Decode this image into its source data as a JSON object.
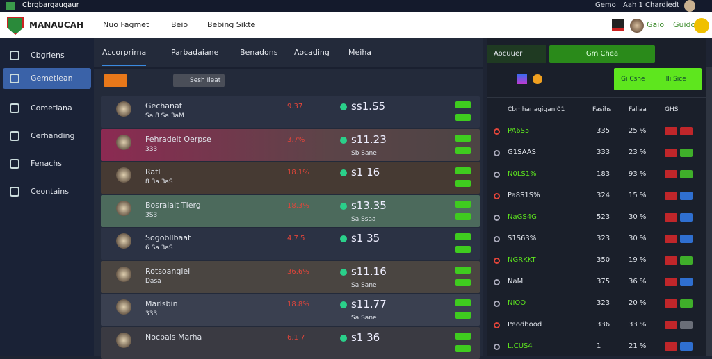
{
  "topbar": {
    "title": "Cbrgbargaugaur",
    "items": [
      "Gemo",
      "Aah 1 Chardiedt"
    ]
  },
  "header": {
    "logo": "MANAUCAH",
    "links": [
      "Nuo Fagmet",
      "Beio",
      "Bebing Sikte"
    ],
    "user": "Gaio",
    "balance": "Guido"
  },
  "sidebar": {
    "items": [
      "Cbgriens",
      "Gemetlean",
      "Cometiana",
      "Cerhanding",
      "Fenachs",
      "Ceontains"
    ],
    "active": 1
  },
  "tabs": {
    "items": [
      "Accorprirna",
      "Parbadaiane",
      "Benadons",
      "Aocading",
      "Meiha"
    ],
    "active": 0
  },
  "filter": {
    "button": "Sesh Ileat"
  },
  "matches": [
    {
      "name": "Gechanat",
      "sub": "Sa 8 Sa 3aM",
      "pct": "9.37",
      "odds": "ss1.S5",
      "bg": "#2b3244"
    },
    {
      "name": "Fehradelt Oerpse",
      "sub": "333",
      "pct": "3.7%",
      "odds": "s11.23",
      "note": "Sb Sane",
      "bg": "linear-gradient(90deg,#8c2a52,#5c4448 60%,#4c4444)"
    },
    {
      "name": "Ratl",
      "sub": "8 3a 3aS",
      "pct": "18.1%",
      "odds": "s1 16",
      "bg": "#463a33"
    },
    {
      "name": "Bosralalt Tlerg",
      "sub": "3S3",
      "pct": "18.3%",
      "odds": "s13.35",
      "note": "Sa Ssaa",
      "bg": "#4c6a5c"
    },
    {
      "name": "Sogobllbaat",
      "sub": "6 Sa 3aS",
      "pct": "4.7 5",
      "odds": "s1 35",
      "bg": "#2b3244"
    },
    {
      "name": "Rotsoanqlel",
      "sub": "Dasa",
      "pct": "36.6%",
      "odds": "s11.16",
      "note": "Sa Sane",
      "bg": "#4a4541"
    },
    {
      "name": "Marlsbin",
      "sub": "333",
      "pct": "18.8%",
      "odds": "s11.77",
      "note": "Sa Sane",
      "bg": "#3a4050"
    },
    {
      "name": "Nocbals Marha",
      "sub": "",
      "pct": "6.1 7",
      "odds": "s1 36",
      "bg": "#3a3a42"
    }
  ],
  "panel": {
    "title": "Aocuuer",
    "button": "Gm Chea",
    "action": "Gi Cshe",
    "action2": "Ili Sice",
    "columns": [
      "Cbmhanagiganl01",
      "Fasihs",
      "Faliaa",
      "GHS"
    ]
  },
  "rows": [
    {
      "name": "PA6S5",
      "a": "335",
      "b": "25 %",
      "c": [
        "#c0262a",
        "#c0262a"
      ]
    },
    {
      "name": "G1SAAS",
      "a": "333",
      "b": "23 %",
      "c": [
        "#c0262a",
        "#3fae2a"
      ]
    },
    {
      "name": "N0LS1%",
      "a": "183",
      "b": "93 %",
      "c": [
        "#c0262a",
        "#3fae2a"
      ]
    },
    {
      "name": "Pa8S1S%",
      "a": "324",
      "b": "15 %",
      "c": [
        "#c0262a",
        "#2f6fd0"
      ]
    },
    {
      "name": "NaGS4G",
      "a": "523",
      "b": "30 %",
      "c": [
        "#c0262a",
        "#2f6fd0"
      ]
    },
    {
      "name": "S1S63%",
      "a": "323",
      "b": "30 %",
      "c": [
        "#c0262a",
        "#2f6fd0"
      ]
    },
    {
      "name": "NGRKKT",
      "a": "350",
      "b": "19 %",
      "c": [
        "#c0262a",
        "#3fae2a"
      ]
    },
    {
      "name": "NaM",
      "a": "375",
      "b": "36 %",
      "c": [
        "#c0262a",
        "#2f6fd0"
      ]
    },
    {
      "name": "NIOO",
      "a": "323",
      "b": "20 %",
      "c": [
        "#c0262a",
        "#3fae2a"
      ]
    },
    {
      "name": "Peodbood",
      "a": "336",
      "b": "33 %",
      "c": [
        "#c0262a",
        "#6a6e78"
      ]
    },
    {
      "name": "L.CUS4",
      "a": "1",
      "b": "21 %",
      "c": [
        "#c0262a",
        "#2f6fd0"
      ]
    }
  ]
}
